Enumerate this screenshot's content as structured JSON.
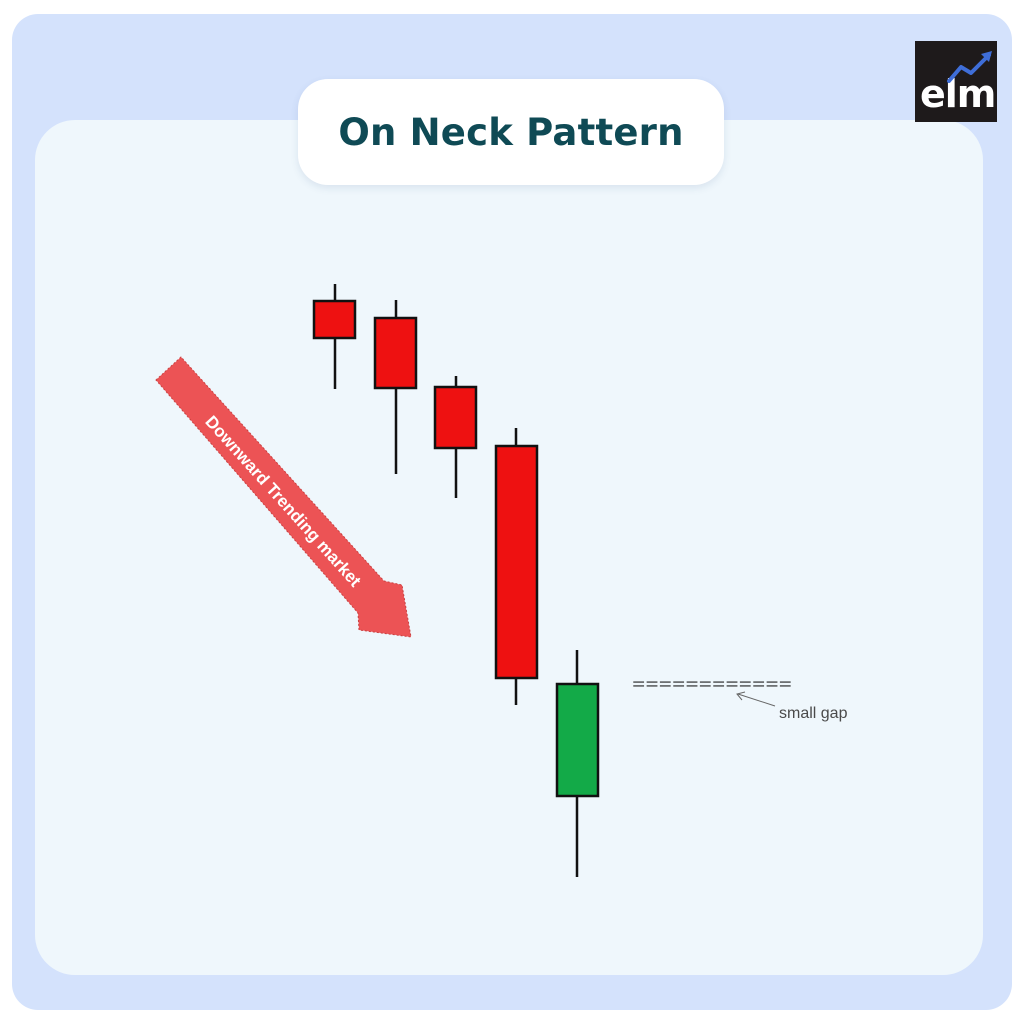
{
  "title": "On Neck Pattern",
  "logo": {
    "text": "elm",
    "icon": "trend-up-arrow-icon"
  },
  "diagram": {
    "arrow_label": "Downward Trending market",
    "gap_marker": "============",
    "gap_label": "small gap"
  },
  "colors": {
    "background": "#d4e2fc",
    "panel": "#eff7fc",
    "title": "#0f4a55",
    "bearish": "#ee1111",
    "bullish": "#13aa48",
    "arrow": "#ec5355"
  }
}
